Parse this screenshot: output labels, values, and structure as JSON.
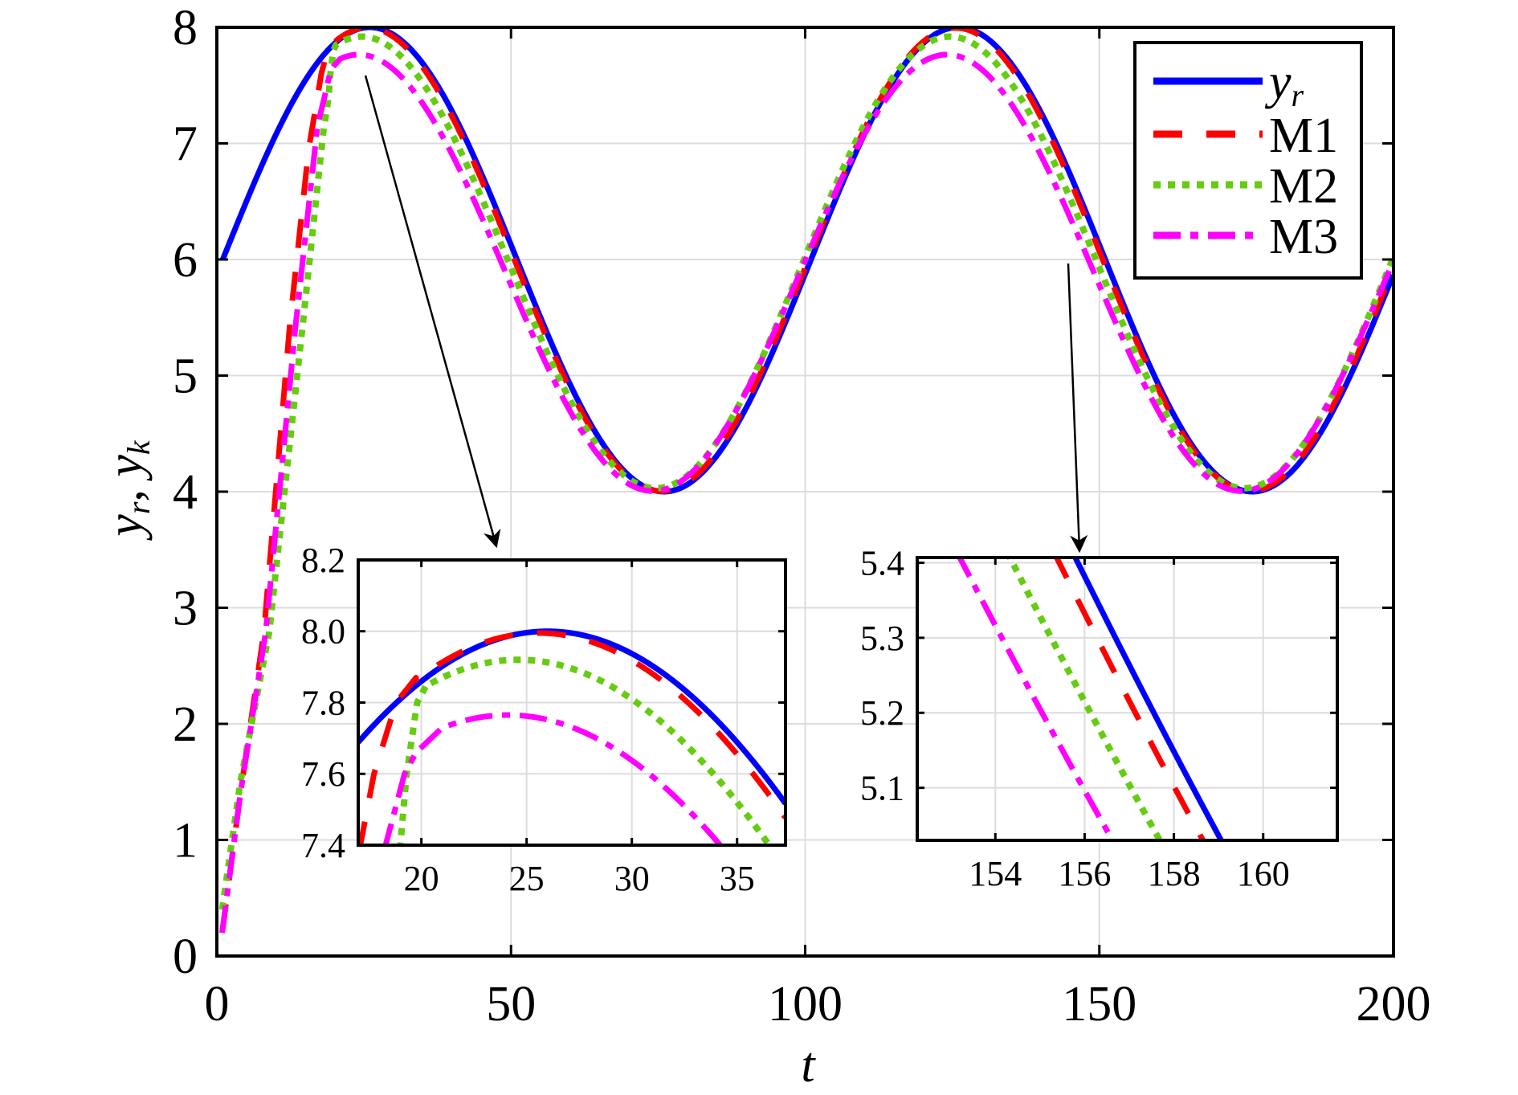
{
  "chart_data": {
    "type": "line",
    "title": "",
    "xlabel": "t",
    "ylabel": {
      "v1": "y",
      "s1": "r",
      "sep": ", ",
      "v2": "y",
      "s2": "k"
    },
    "xlim": [
      0,
      200
    ],
    "ylim": [
      0,
      8
    ],
    "xticks": [
      0,
      50,
      100,
      150,
      200
    ],
    "xticklabels": [
      "0",
      "50",
      "100",
      "150",
      "200"
    ],
    "yticks": [
      0,
      1,
      2,
      3,
      4,
      5,
      6,
      7,
      8
    ],
    "yticklabels": [
      "0",
      "1",
      "2",
      "3",
      "4",
      "5",
      "6",
      "7",
      "8"
    ],
    "grid": true,
    "legend": {
      "position": "top-right"
    },
    "series": [
      {
        "label": {
          "base": "y",
          "sub": "r"
        },
        "color": "#0000ff",
        "style": "solid",
        "model": "offset + amplitude*sin(2*pi*(t - phase_shift)/period)",
        "offset": 6.0,
        "amplitude": 2.0,
        "period": 100,
        "phase_shift": 1.0,
        "t_start": 1,
        "t_end": 200,
        "transient_points": []
      },
      {
        "label": {
          "base": "M1",
          "sub": ""
        },
        "color": "#ff0000",
        "style": "dashed",
        "model": "offset + amplitude*sin(2*pi*(t - phase_shift)/period)",
        "offset": 6.0,
        "amplitude": 1.995,
        "period": 100,
        "phase_shift": 0.57,
        "t_start": 0.9,
        "t_end": 200,
        "transient_points": [
          [
            0.9,
            0.2
          ],
          [
            4,
            1.4
          ],
          [
            8,
            2.79
          ],
          [
            12.4,
            5.44
          ],
          [
            15.6,
            6.95
          ],
          [
            17.1,
            7.4
          ],
          [
            17.75,
            7.6
          ],
          [
            18.8,
            7.8
          ],
          [
            19.75,
            7.87
          ]
        ]
      },
      {
        "label": {
          "base": "M2",
          "sub": ""
        },
        "color": "#66cc11",
        "style": "dotted",
        "model": "offset + amplitude*sin(2*pi*(t - phase_shift)/period)",
        "offset": 5.975,
        "amplitude": 1.945,
        "period": 100,
        "phase_shift": -0.39,
        "t_start": 0.9,
        "t_end": 200,
        "transient_points": [
          [
            0.9,
            0.4
          ],
          [
            4,
            1.5
          ],
          [
            8.9,
            2.79
          ],
          [
            14.6,
            5.44
          ],
          [
            18.1,
            7.1
          ],
          [
            19.0,
            7.4
          ],
          [
            19.3,
            7.6
          ],
          [
            19.8,
            7.8
          ],
          [
            20.25,
            7.85
          ]
        ]
      },
      {
        "label": {
          "base": "M3",
          "sub": ""
        },
        "color": "#ff00ff",
        "style": "dash-dot",
        "model": "offset + amplitude*sin(2*pi*(t - phase_shift)/period)",
        "offset": 5.885,
        "amplitude": 1.88,
        "period": 100,
        "phase_shift": -0.89,
        "t_start": 0.9,
        "t_end": 200,
        "transient_points": [
          [
            0.9,
            0.2
          ],
          [
            4,
            1.4
          ],
          [
            8.3,
            2.79
          ],
          [
            13.4,
            5.44
          ],
          [
            17.1,
            7.15
          ],
          [
            18.3,
            7.4
          ],
          [
            19.2,
            7.6
          ],
          [
            19.75,
            7.66
          ],
          [
            21,
            7.73
          ]
        ]
      }
    ],
    "insets": [
      {
        "xlim": [
          17.0,
          37.3
        ],
        "ylim": [
          7.4,
          8.2
        ],
        "xticks": [
          20,
          25,
          30,
          35
        ],
        "xticklabels": [
          "20",
          "25",
          "30",
          "35"
        ],
        "yticks": [
          7.4,
          7.6,
          7.8,
          8.0,
          8.2
        ],
        "yticklabels": [
          "7.4",
          "7.6",
          "7.8",
          "8.0",
          "8.2"
        ]
      },
      {
        "xlim": [
          152.25,
          161.66
        ],
        "ylim": [
          5.03,
          5.407
        ],
        "xticks": [
          154,
          156,
          158,
          160
        ],
        "xticklabels": [
          "154",
          "156",
          "158",
          "160"
        ],
        "yticks": [
          5.1,
          5.2,
          5.3,
          5.4
        ],
        "yticklabels": [
          "5.1",
          "5.2",
          "5.3",
          "5.4"
        ]
      }
    ]
  }
}
